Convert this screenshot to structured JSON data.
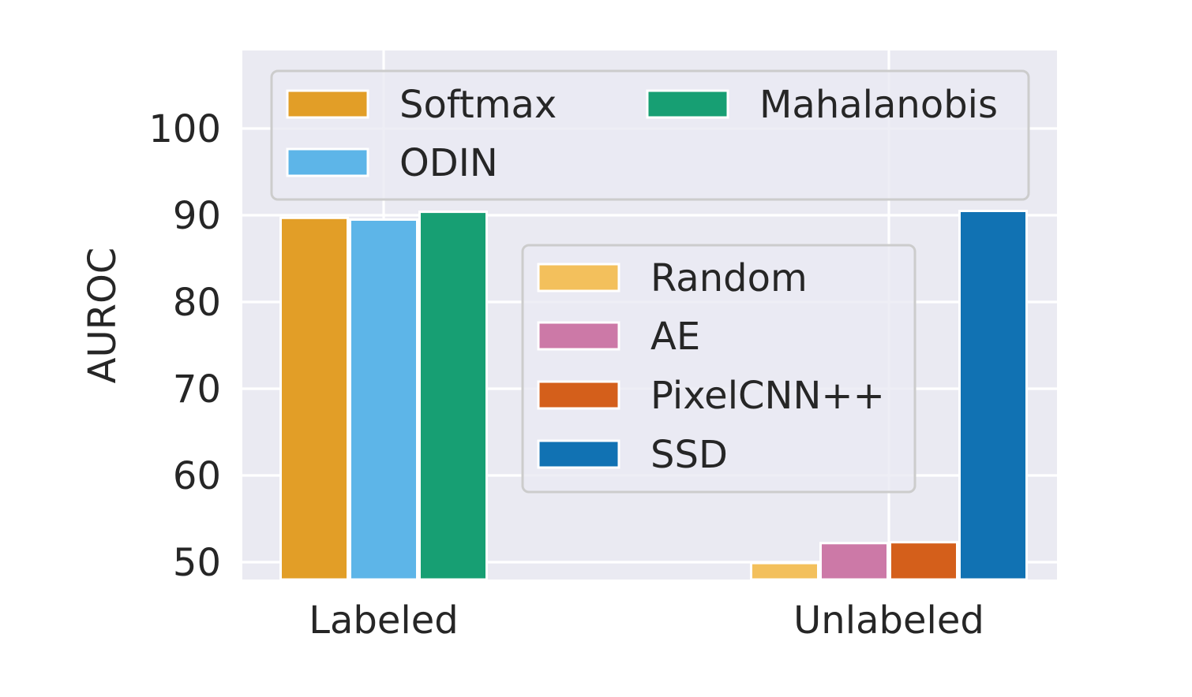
{
  "chart_data": {
    "type": "bar",
    "title": "",
    "xlabel": "",
    "ylabel": "AUROC",
    "categories": [
      "Labeled",
      "Unlabeled"
    ],
    "ylim": [
      48,
      109
    ],
    "yticks": [
      50,
      60,
      70,
      80,
      90,
      100
    ],
    "grid": true,
    "colors": {
      "plot_background": "#EAEAF2",
      "grid": "#FFFFFF",
      "text": "#262626"
    },
    "groups": [
      {
        "category": "Labeled",
        "series": [
          {
            "name": "Softmax",
            "value": 89.7,
            "color": "#E29E27"
          },
          {
            "name": "ODIN",
            "value": 89.5,
            "color": "#5DB5E8"
          },
          {
            "name": "Mahalanobis",
            "value": 90.4,
            "color": "#179F73"
          }
        ]
      },
      {
        "category": "Unlabeled",
        "series": [
          {
            "name": "Random",
            "value": 49.9,
            "color": "#F3C05C"
          },
          {
            "name": "AE",
            "value": 52.2,
            "color": "#CC79A7"
          },
          {
            "name": "PixelCNN++",
            "value": 52.3,
            "color": "#D45F1B"
          },
          {
            "name": "SSD",
            "value": 90.5,
            "color": "#1172B3"
          }
        ]
      }
    ],
    "legends": [
      {
        "placement": "upper",
        "columns": 2,
        "entries": [
          {
            "label": "Softmax",
            "color": "#E29E27"
          },
          {
            "label": "Mahalanobis",
            "color": "#179F73"
          },
          {
            "label": "ODIN",
            "color": "#5DB5E8"
          }
        ]
      },
      {
        "placement": "center-right",
        "columns": 1,
        "entries": [
          {
            "label": "Random",
            "color": "#F3C05C"
          },
          {
            "label": "AE",
            "color": "#CC79A7"
          },
          {
            "label": "PixelCNN++",
            "color": "#D45F1B"
          },
          {
            "label": "SSD",
            "color": "#1172B3"
          }
        ]
      }
    ]
  }
}
